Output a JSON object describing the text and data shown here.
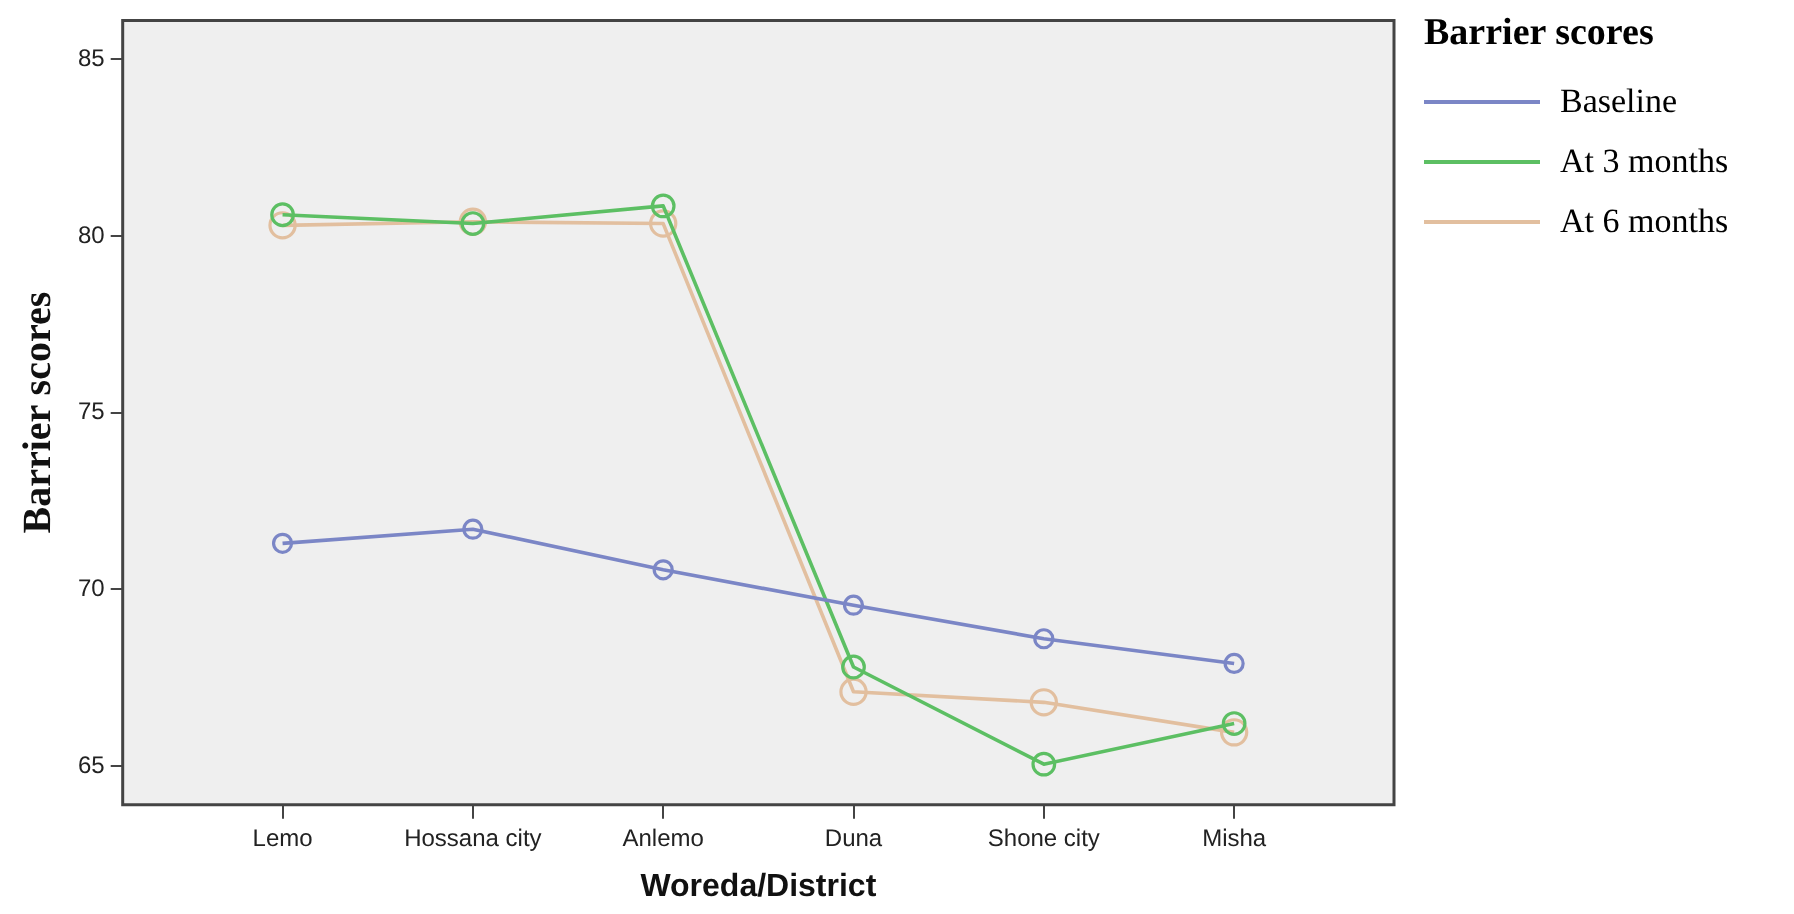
{
  "chart_data": {
    "type": "line",
    "xlabel": "Woreda/District",
    "ylabel": "Barrier scores",
    "legend_title": "Barrier scores",
    "categories": [
      "Lemo",
      "Hossana city",
      "Anlemo",
      "Duna",
      "Shone city",
      "Misha"
    ],
    "series": [
      {
        "name": "Baseline",
        "color": "#7b86c6",
        "values": [
          71.3,
          71.7,
          70.55,
          69.55,
          68.6,
          67.9
        ]
      },
      {
        "name": "At 3 months",
        "color": "#5cbf63",
        "values": [
          80.6,
          80.35,
          80.85,
          67.8,
          65.05,
          66.2
        ]
      },
      {
        "name": "At 6 months",
        "color": "#e2bf9f",
        "values": [
          80.3,
          80.4,
          80.35,
          67.1,
          66.8,
          65.95
        ]
      }
    ],
    "ylim": [
      63.9,
      86.1
    ],
    "yticks": [
      65,
      70,
      75,
      80,
      85
    ],
    "grid": false,
    "legend": "right",
    "marker": "circle",
    "line_style": "solid"
  }
}
